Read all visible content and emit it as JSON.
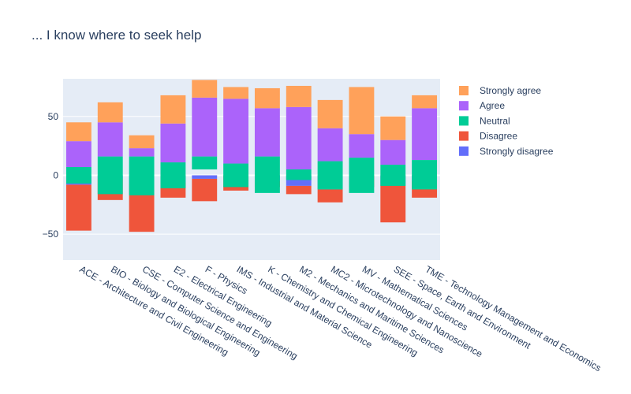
{
  "chart_data": {
    "type": "bar",
    "mode": "relative",
    "title": "... I know where to seek help",
    "xlabel": "",
    "ylabel": "",
    "ylim": [
      -72,
      82
    ],
    "yticks": [
      -50,
      0,
      50
    ],
    "grid": true,
    "legend_position": "right",
    "categories": [
      "ACE - Architecture and Civil Engineering",
      "BIO - Biology and Biological Engineering",
      "CSE - Computer Science and Engineering",
      "E2 - Electrical Engineering",
      "F - Physics",
      "IMS - Industrial and Material Science",
      "K - Chemistry and Chemical Engineering",
      "M2 - Mechanics and Maritime Sciences",
      "MC2 - Microtechnology and Nanoscience",
      "MV - Mathematical Sciences",
      "SEE - Space, Earth and Environment",
      "TME - Technology Management and Economics"
    ],
    "series": [
      {
        "name": "Strongly agree",
        "color": "#FFA15A",
        "values": [
          16,
          17,
          11,
          24,
          15,
          10,
          17,
          18,
          24,
          40,
          20,
          11
        ]
      },
      {
        "name": "Agree",
        "color": "#AB63FA",
        "values": [
          22,
          29,
          7,
          33,
          50,
          55,
          41,
          53,
          28,
          20,
          21,
          44
        ]
      },
      {
        "name": "Neutral",
        "color": "#00CC96",
        "values": [
          14,
          32,
          33,
          22,
          11,
          20,
          31,
          9,
          24,
          30,
          18,
          25
        ]
      },
      {
        "name": "Disagree",
        "color": "#EF553B",
        "values": [
          -39,
          -18,
          -41,
          -13,
          -19,
          -13,
          -5,
          -7,
          -11,
          -10,
          -32,
          -14
        ]
      },
      {
        "name": "Strongly disagree",
        "color": "#636EFA",
        "values": [
          -8,
          -3,
          -7,
          -6,
          -3,
          0,
          -5,
          -9,
          -12,
          0,
          -8,
          -5
        ]
      }
    ],
    "baselines": {
      "Neutral": [
        -7,
        -16,
        -17,
        -11,
        5,
        -10,
        -15,
        -4,
        -12,
        -15,
        -9,
        -12
      ]
    }
  }
}
